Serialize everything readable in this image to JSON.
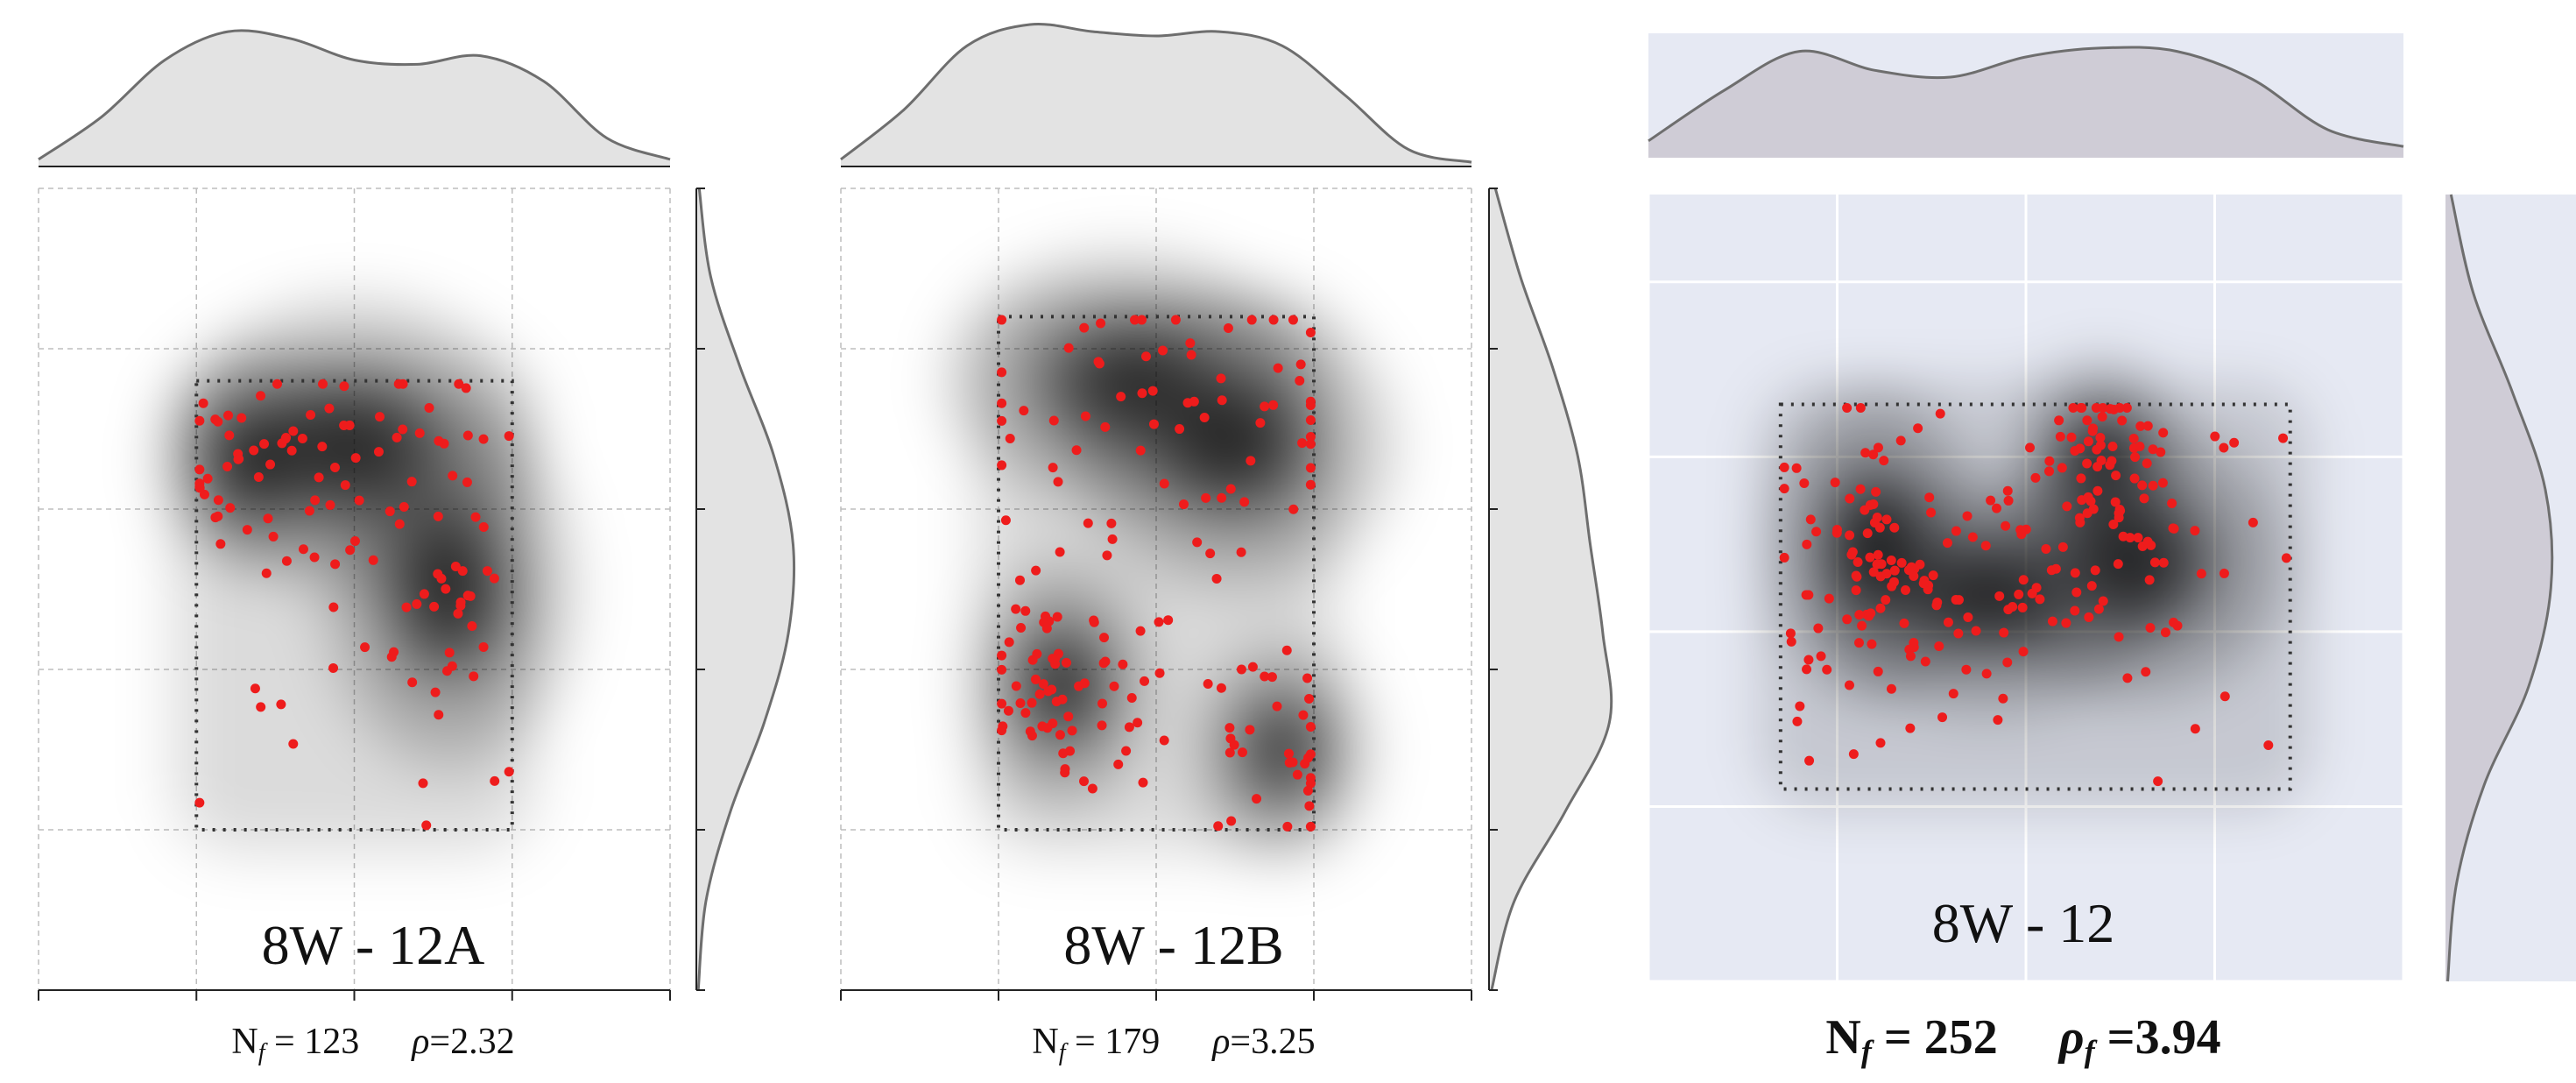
{
  "chart_data": [
    {
      "type": "scatter",
      "style": "white",
      "title": "8W - 12A",
      "nf_label": "N",
      "nf_subscript": "f",
      "nf_value": "123",
      "rho_label": "ρ",
      "rho_subscript": "",
      "rho_value": "2.32",
      "n_points": 123,
      "xlim": [
        0,
        4
      ],
      "ylim": [
        0,
        5
      ],
      "rect": [
        1,
        1,
        3,
        3.8
      ],
      "clusters": [
        {
          "x": 1.35,
          "y": 3.3,
          "sx": 0.25,
          "sy": 0.3,
          "w": 0.42
        },
        {
          "x": 2.6,
          "y": 2.5,
          "sx": 0.35,
          "sy": 0.5,
          "w": 0.33
        },
        {
          "x": 2.0,
          "y": 3.4,
          "sx": 0.5,
          "sy": 0.4,
          "w": 0.25
        }
      ],
      "marginal_x": [
        0.05,
        0.35,
        0.75,
        0.95,
        0.9,
        0.75,
        0.72,
        0.78,
        0.6,
        0.2,
        0.05
      ],
      "marginal_y": [
        0.02,
        0.1,
        0.35,
        0.7,
        0.95,
        1.0,
        0.8,
        0.45,
        0.15,
        0.03
      ]
    },
    {
      "type": "scatter",
      "style": "white",
      "title": "8W - 12B",
      "nf_label": "N",
      "nf_subscript": "f",
      "nf_value": "179",
      "rho_label": "ρ",
      "rho_subscript": "",
      "rho_value": "3.25",
      "n_points": 179,
      "xlim": [
        0,
        4
      ],
      "ylim": [
        0,
        5
      ],
      "rect": [
        1,
        1,
        3,
        4.2
      ],
      "clusters": [
        {
          "x": 1.4,
          "y": 1.9,
          "sx": 0.25,
          "sy": 0.35,
          "w": 0.45
        },
        {
          "x": 2.5,
          "y": 3.4,
          "sx": 0.45,
          "sy": 0.4,
          "w": 0.25
        },
        {
          "x": 2.8,
          "y": 1.5,
          "sx": 0.25,
          "sy": 0.3,
          "w": 0.15
        },
        {
          "x": 1.8,
          "y": 3.8,
          "sx": 0.5,
          "sy": 0.35,
          "w": 0.15
        }
      ],
      "marginal_x": [
        0.05,
        0.4,
        0.85,
        1.0,
        0.95,
        0.92,
        0.95,
        0.85,
        0.5,
        0.12,
        0.03
      ],
      "marginal_y": [
        0.02,
        0.2,
        0.6,
        0.95,
        0.9,
        0.8,
        0.7,
        0.5,
        0.25,
        0.05
      ]
    },
    {
      "type": "scatter",
      "style": "seaborn",
      "title": "8W - 12",
      "nf_label": "N",
      "nf_subscript": "f",
      "nf_value": "252",
      "rho_label": "ρ",
      "rho_subscript": "f",
      "rho_value": "3.94",
      "n_points": 252,
      "xlim": [
        0,
        4
      ],
      "ylim": [
        0,
        4.5
      ],
      "rect": [
        0.7,
        1.1,
        3.4,
        3.3
      ],
      "clusters": [
        {
          "x": 1.2,
          "y": 2.5,
          "sx": 0.25,
          "sy": 0.4,
          "w": 0.3
        },
        {
          "x": 2.4,
          "y": 3.0,
          "sx": 0.2,
          "sy": 0.25,
          "w": 0.3
        },
        {
          "x": 1.8,
          "y": 2.2,
          "sx": 0.4,
          "sy": 0.3,
          "w": 0.2
        },
        {
          "x": 2.6,
          "y": 2.4,
          "sx": 0.35,
          "sy": 0.35,
          "w": 0.2
        }
      ],
      "marginal_x": [
        0.15,
        0.6,
        0.95,
        0.78,
        0.72,
        0.9,
        0.98,
        0.95,
        0.7,
        0.25,
        0.1
      ],
      "marginal_y": [
        0.02,
        0.1,
        0.35,
        0.75,
        0.95,
        0.9,
        0.6,
        0.25,
        0.05
      ]
    }
  ]
}
